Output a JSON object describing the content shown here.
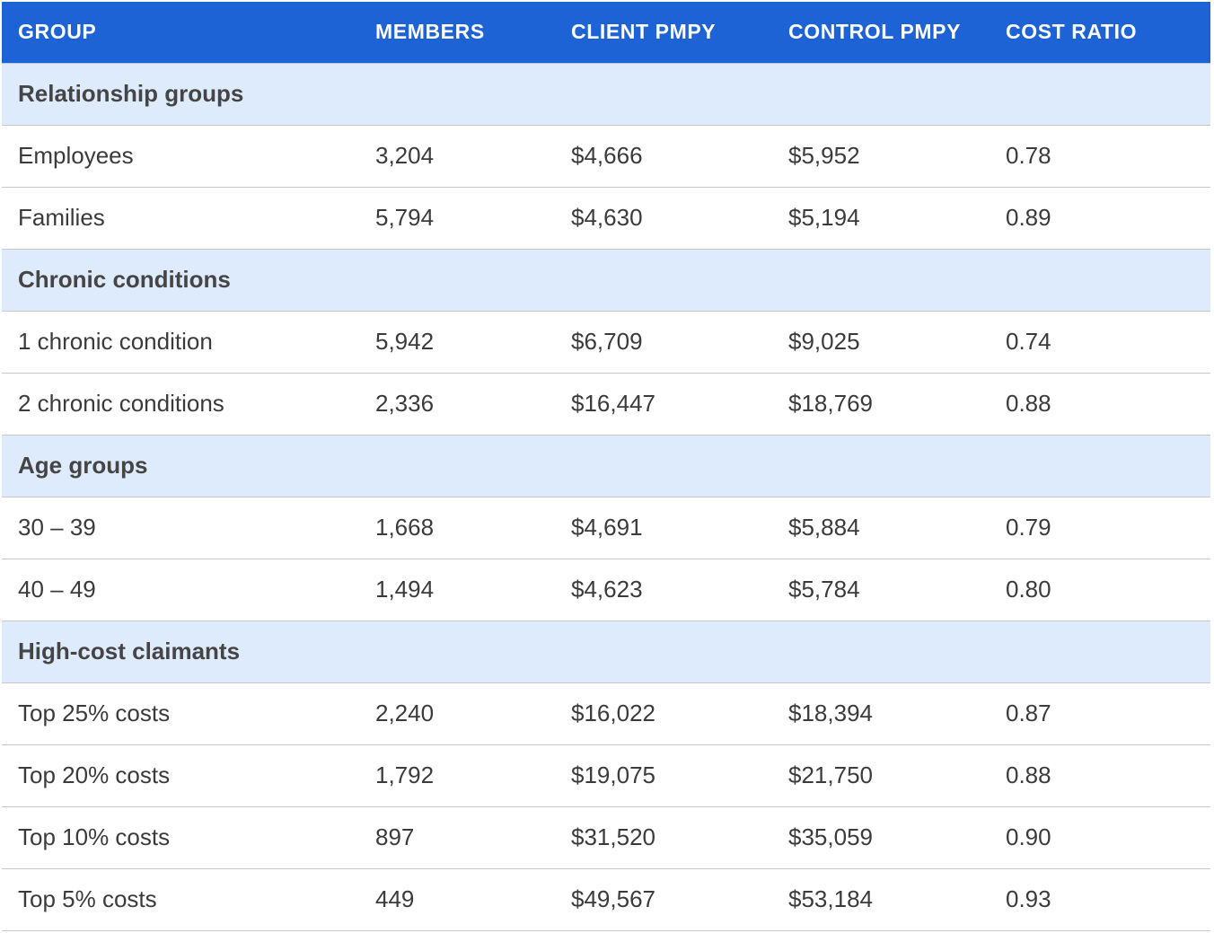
{
  "table": {
    "headers": [
      "GROUP",
      "MEMBERS",
      "CLIENT PMPY",
      "CONTROL PMPY",
      "COST RATIO"
    ],
    "sections": [
      {
        "title": "Relationship groups",
        "rows": [
          [
            "Employees",
            "3,204",
            "$4,666",
            "$5,952",
            "0.78"
          ],
          [
            "Families",
            "5,794",
            "$4,630",
            "$5,194",
            "0.89"
          ]
        ]
      },
      {
        "title": "Chronic conditions",
        "rows": [
          [
            "1 chronic condition",
            "5,942",
            "$6,709",
            "$9,025",
            "0.74"
          ],
          [
            "2 chronic conditions",
            "2,336",
            "$16,447",
            "$18,769",
            "0.88"
          ]
        ]
      },
      {
        "title": "Age groups",
        "rows": [
          [
            "30 – 39",
            "1,668",
            "$4,691",
            "$5,884",
            "0.79"
          ],
          [
            "40 – 49",
            "1,494",
            "$4,623",
            "$5,784",
            "0.80"
          ]
        ]
      },
      {
        "title": "High-cost claimants",
        "rows": [
          [
            "Top 25% costs",
            "2,240",
            "$16,022",
            "$18,394",
            "0.87"
          ],
          [
            "Top 20% costs",
            "1,792",
            "$19,075",
            "$21,750",
            "0.88"
          ],
          [
            "Top 10% costs",
            "897",
            "$31,520",
            "$35,059",
            "0.90"
          ],
          [
            "Top 5% costs",
            "449",
            "$49,567",
            "$53,184",
            "0.93"
          ]
        ]
      }
    ]
  },
  "colors": {
    "header_bg": "#1e63d6",
    "section_bg": "#deebfd",
    "row_border": "#c8c8c8"
  }
}
